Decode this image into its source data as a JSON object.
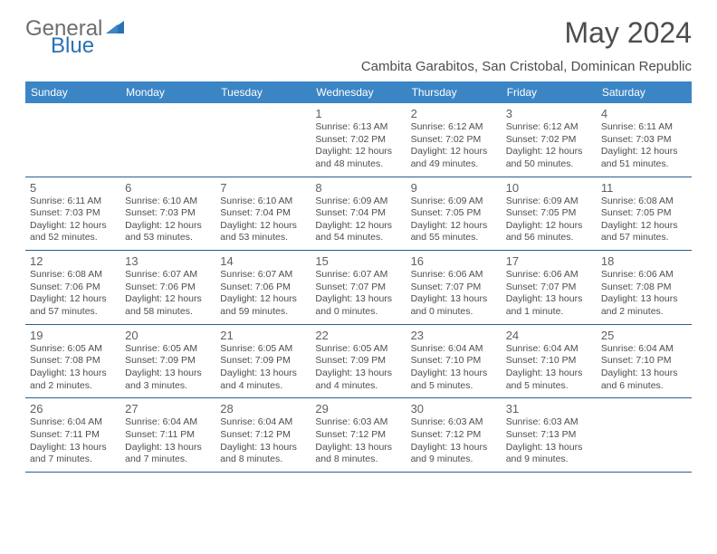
{
  "brand": {
    "general": "General",
    "blue": "Blue",
    "logo_color_gray": "#6d6e70",
    "logo_color_blue": "#2a72b5"
  },
  "title": "May 2024",
  "location": "Cambita Garabitos, San Cristobal, Dominican Republic",
  "colors": {
    "header_bg": "#3b85c5",
    "header_text": "#ffffff",
    "row_border": "#2f5d8c",
    "text": "#4d4d4d",
    "daynum": "#5f5f5f"
  },
  "weekdays": [
    "Sunday",
    "Monday",
    "Tuesday",
    "Wednesday",
    "Thursday",
    "Friday",
    "Saturday"
  ],
  "weeks": [
    [
      null,
      null,
      null,
      {
        "n": "1",
        "sr": "Sunrise: 6:13 AM",
        "ss": "Sunset: 7:02 PM",
        "d1": "Daylight: 12 hours",
        "d2": "and 48 minutes."
      },
      {
        "n": "2",
        "sr": "Sunrise: 6:12 AM",
        "ss": "Sunset: 7:02 PM",
        "d1": "Daylight: 12 hours",
        "d2": "and 49 minutes."
      },
      {
        "n": "3",
        "sr": "Sunrise: 6:12 AM",
        "ss": "Sunset: 7:02 PM",
        "d1": "Daylight: 12 hours",
        "d2": "and 50 minutes."
      },
      {
        "n": "4",
        "sr": "Sunrise: 6:11 AM",
        "ss": "Sunset: 7:03 PM",
        "d1": "Daylight: 12 hours",
        "d2": "and 51 minutes."
      }
    ],
    [
      {
        "n": "5",
        "sr": "Sunrise: 6:11 AM",
        "ss": "Sunset: 7:03 PM",
        "d1": "Daylight: 12 hours",
        "d2": "and 52 minutes."
      },
      {
        "n": "6",
        "sr": "Sunrise: 6:10 AM",
        "ss": "Sunset: 7:03 PM",
        "d1": "Daylight: 12 hours",
        "d2": "and 53 minutes."
      },
      {
        "n": "7",
        "sr": "Sunrise: 6:10 AM",
        "ss": "Sunset: 7:04 PM",
        "d1": "Daylight: 12 hours",
        "d2": "and 53 minutes."
      },
      {
        "n": "8",
        "sr": "Sunrise: 6:09 AM",
        "ss": "Sunset: 7:04 PM",
        "d1": "Daylight: 12 hours",
        "d2": "and 54 minutes."
      },
      {
        "n": "9",
        "sr": "Sunrise: 6:09 AM",
        "ss": "Sunset: 7:05 PM",
        "d1": "Daylight: 12 hours",
        "d2": "and 55 minutes."
      },
      {
        "n": "10",
        "sr": "Sunrise: 6:09 AM",
        "ss": "Sunset: 7:05 PM",
        "d1": "Daylight: 12 hours",
        "d2": "and 56 minutes."
      },
      {
        "n": "11",
        "sr": "Sunrise: 6:08 AM",
        "ss": "Sunset: 7:05 PM",
        "d1": "Daylight: 12 hours",
        "d2": "and 57 minutes."
      }
    ],
    [
      {
        "n": "12",
        "sr": "Sunrise: 6:08 AM",
        "ss": "Sunset: 7:06 PM",
        "d1": "Daylight: 12 hours",
        "d2": "and 57 minutes."
      },
      {
        "n": "13",
        "sr": "Sunrise: 6:07 AM",
        "ss": "Sunset: 7:06 PM",
        "d1": "Daylight: 12 hours",
        "d2": "and 58 minutes."
      },
      {
        "n": "14",
        "sr": "Sunrise: 6:07 AM",
        "ss": "Sunset: 7:06 PM",
        "d1": "Daylight: 12 hours",
        "d2": "and 59 minutes."
      },
      {
        "n": "15",
        "sr": "Sunrise: 6:07 AM",
        "ss": "Sunset: 7:07 PM",
        "d1": "Daylight: 13 hours",
        "d2": "and 0 minutes."
      },
      {
        "n": "16",
        "sr": "Sunrise: 6:06 AM",
        "ss": "Sunset: 7:07 PM",
        "d1": "Daylight: 13 hours",
        "d2": "and 0 minutes."
      },
      {
        "n": "17",
        "sr": "Sunrise: 6:06 AM",
        "ss": "Sunset: 7:07 PM",
        "d1": "Daylight: 13 hours",
        "d2": "and 1 minute."
      },
      {
        "n": "18",
        "sr": "Sunrise: 6:06 AM",
        "ss": "Sunset: 7:08 PM",
        "d1": "Daylight: 13 hours",
        "d2": "and 2 minutes."
      }
    ],
    [
      {
        "n": "19",
        "sr": "Sunrise: 6:05 AM",
        "ss": "Sunset: 7:08 PM",
        "d1": "Daylight: 13 hours",
        "d2": "and 2 minutes."
      },
      {
        "n": "20",
        "sr": "Sunrise: 6:05 AM",
        "ss": "Sunset: 7:09 PM",
        "d1": "Daylight: 13 hours",
        "d2": "and 3 minutes."
      },
      {
        "n": "21",
        "sr": "Sunrise: 6:05 AM",
        "ss": "Sunset: 7:09 PM",
        "d1": "Daylight: 13 hours",
        "d2": "and 4 minutes."
      },
      {
        "n": "22",
        "sr": "Sunrise: 6:05 AM",
        "ss": "Sunset: 7:09 PM",
        "d1": "Daylight: 13 hours",
        "d2": "and 4 minutes."
      },
      {
        "n": "23",
        "sr": "Sunrise: 6:04 AM",
        "ss": "Sunset: 7:10 PM",
        "d1": "Daylight: 13 hours",
        "d2": "and 5 minutes."
      },
      {
        "n": "24",
        "sr": "Sunrise: 6:04 AM",
        "ss": "Sunset: 7:10 PM",
        "d1": "Daylight: 13 hours",
        "d2": "and 5 minutes."
      },
      {
        "n": "25",
        "sr": "Sunrise: 6:04 AM",
        "ss": "Sunset: 7:10 PM",
        "d1": "Daylight: 13 hours",
        "d2": "and 6 minutes."
      }
    ],
    [
      {
        "n": "26",
        "sr": "Sunrise: 6:04 AM",
        "ss": "Sunset: 7:11 PM",
        "d1": "Daylight: 13 hours",
        "d2": "and 7 minutes."
      },
      {
        "n": "27",
        "sr": "Sunrise: 6:04 AM",
        "ss": "Sunset: 7:11 PM",
        "d1": "Daylight: 13 hours",
        "d2": "and 7 minutes."
      },
      {
        "n": "28",
        "sr": "Sunrise: 6:04 AM",
        "ss": "Sunset: 7:12 PM",
        "d1": "Daylight: 13 hours",
        "d2": "and 8 minutes."
      },
      {
        "n": "29",
        "sr": "Sunrise: 6:03 AM",
        "ss": "Sunset: 7:12 PM",
        "d1": "Daylight: 13 hours",
        "d2": "and 8 minutes."
      },
      {
        "n": "30",
        "sr": "Sunrise: 6:03 AM",
        "ss": "Sunset: 7:12 PM",
        "d1": "Daylight: 13 hours",
        "d2": "and 9 minutes."
      },
      {
        "n": "31",
        "sr": "Sunrise: 6:03 AM",
        "ss": "Sunset: 7:13 PM",
        "d1": "Daylight: 13 hours",
        "d2": "and 9 minutes."
      },
      null
    ]
  ]
}
